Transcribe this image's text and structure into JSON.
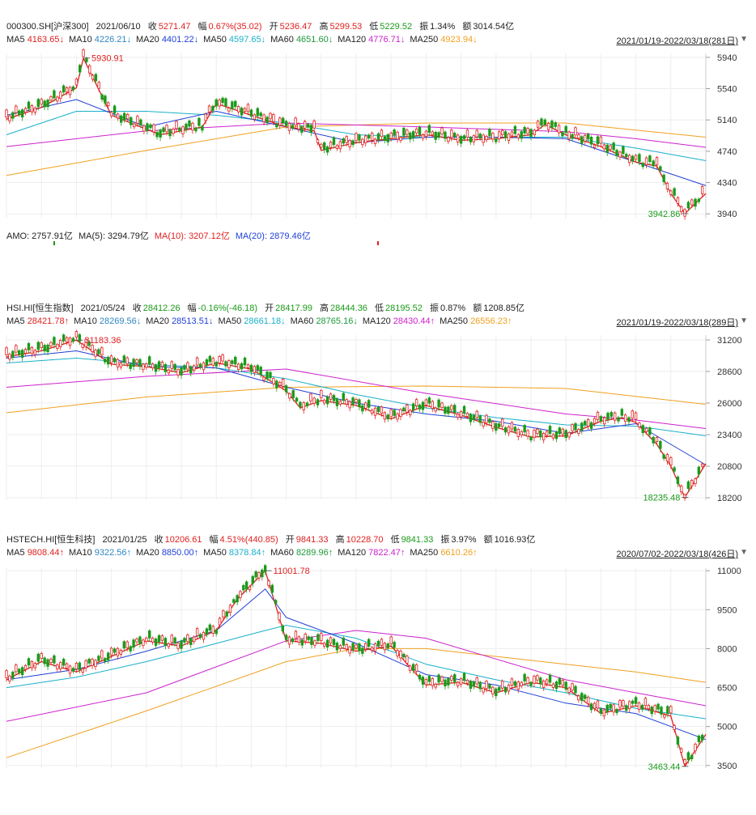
{
  "colors": {
    "up": "#e02020",
    "down": "#1a9a1a",
    "ma5": "#e02020",
    "ma10": "#2e86c1",
    "ma20": "#1f3fd6",
    "ma50": "#1ab0c9",
    "ma60": "#1e9a3a",
    "ma120": "#cc22cc",
    "ma250": "#f0a020",
    "label": "#333333"
  },
  "panels": [
    {
      "id": "csi300",
      "header": {
        "code": "000300.SH[沪深300]",
        "date": "2021/06/10",
        "close_label": "收",
        "close": "5271.47",
        "change_label": "幅",
        "change": "0.67%(35.02)",
        "open_label": "开",
        "open": "5236.47",
        "high_label": "高",
        "high": "5299.53",
        "low_label": "低",
        "low": "5229.52",
        "amp_label": "振",
        "amp": "1.34%",
        "amt_label": "额",
        "amt": "3014.54亿"
      },
      "ma_labels": [
        {
          "name": "MA5",
          "value": "4163.65↓"
        },
        {
          "name": "MA10",
          "value": "4226.21↓"
        },
        {
          "name": "MA20",
          "value": "4401.22↓"
        },
        {
          "name": "MA50",
          "value": "4597.65↓"
        },
        {
          "name": "MA60",
          "value": "4651.60↓"
        },
        {
          "name": "MA120",
          "value": "4776.71↓"
        },
        {
          "name": "MA250",
          "value": "4923.94↓"
        }
      ],
      "range": "2021/01/19-2022/03/18(281日)",
      "amo": {
        "amo": "AMO: 2757.91亿",
        "ma5": "MA(5): 3294.79亿",
        "ma10": "MA(10): 3207.12亿",
        "ma20": "MA(20): 2879.46亿"
      }
    },
    {
      "id": "hsi",
      "header": {
        "code": "HSI.HI[恒生指数]",
        "date": "2021/05/24",
        "close_label": "收",
        "close": "28412.26",
        "change_label": "幅",
        "change": "-0.16%(-46.18)",
        "open_label": "开",
        "open": "28417.99",
        "high_label": "高",
        "high": "28444.36",
        "low_label": "低",
        "low": "28195.52",
        "amp_label": "振",
        "amp": "0.87%",
        "amt_label": "额",
        "amt": "1208.85亿"
      },
      "ma_labels": [
        {
          "name": "MA5",
          "value": "28421.78↑"
        },
        {
          "name": "MA10",
          "value": "28269.56↓"
        },
        {
          "name": "MA20",
          "value": "28513.51↓"
        },
        {
          "name": "MA50",
          "value": "28661.18↓"
        },
        {
          "name": "MA60",
          "value": "28765.16↓"
        },
        {
          "name": "MA120",
          "value": "28430.44↑"
        },
        {
          "name": "MA250",
          "value": "26556.23↑"
        }
      ],
      "range": "2021/01/19-2022/03/18(289日)"
    },
    {
      "id": "hstech",
      "header": {
        "code": "HSTECH.HI[恒生科技]",
        "date": "2021/01/25",
        "close_label": "收",
        "close": "10206.61",
        "change_label": "幅",
        "change": "4.51%(440.85)",
        "open_label": "开",
        "open": "9841.33",
        "high_label": "高",
        "high": "10228.70",
        "low_label": "低",
        "low": "9841.33",
        "amp_label": "振",
        "amp": "3.97%",
        "amt_label": "额",
        "amt": "1016.93亿"
      },
      "ma_labels": [
        {
          "name": "MA5",
          "value": "9808.44↑"
        },
        {
          "name": "MA10",
          "value": "9322.56↑"
        },
        {
          "name": "MA20",
          "value": "8850.00↑"
        },
        {
          "name": "MA50",
          "value": "8378.84↑"
        },
        {
          "name": "MA60",
          "value": "8289.96↑"
        },
        {
          "name": "MA120",
          "value": "7822.47↑"
        },
        {
          "name": "MA250",
          "value": "6610.26↑"
        }
      ],
      "range": "2020/07/02-2022/03/18(426日)"
    }
  ],
  "chart_data": [
    {
      "type": "line",
      "y_ticks": [
        5940,
        5540,
        5140,
        4740,
        4340,
        3940
      ],
      "ylim": [
        3880,
        5990
      ],
      "annotations": [
        {
          "label": "5930.91",
          "x": 0.11,
          "y": 5930.91
        },
        {
          "label": "3942.86",
          "x": 0.975,
          "y": 3942.86
        }
      ],
      "series": [
        {
          "key": "close",
          "x": [
            0,
            0.05,
            0.1,
            0.11,
            0.15,
            0.22,
            0.28,
            0.3,
            0.35,
            0.4,
            0.44,
            0.45,
            0.5,
            0.55,
            0.6,
            0.65,
            0.7,
            0.75,
            0.77,
            0.8,
            0.85,
            0.9,
            0.93,
            0.95,
            0.97,
            1.0
          ],
          "values": [
            5150,
            5300,
            5550,
            5930,
            5200,
            4950,
            5050,
            5350,
            5200,
            5050,
            5000,
            4750,
            4850,
            4900,
            4950,
            4880,
            4900,
            4950,
            5080,
            4950,
            4800,
            4600,
            4550,
            4200,
            3943,
            4200
          ]
        },
        {
          "key": "ma20",
          "x": [
            0,
            0.1,
            0.2,
            0.3,
            0.4,
            0.5,
            0.6,
            0.7,
            0.8,
            0.9,
            1.0
          ],
          "values": [
            5200,
            5400,
            5050,
            5250,
            5050,
            4850,
            4920,
            4920,
            4900,
            4600,
            4300
          ]
        },
        {
          "key": "ma60",
          "x": [
            0,
            0.1,
            0.2,
            0.3,
            0.4,
            0.5,
            0.6,
            0.7,
            0.8,
            0.9,
            1.0
          ],
          "values": [
            4950,
            5250,
            5250,
            5200,
            5100,
            4950,
            4920,
            4920,
            4920,
            4780,
            4620
          ]
        },
        {
          "key": "ma120",
          "x": [
            0,
            0.2,
            0.4,
            0.6,
            0.8,
            0.9,
            1.0
          ],
          "values": [
            4800,
            5000,
            5100,
            5050,
            4990,
            4900,
            4790
          ]
        },
        {
          "key": "ma250",
          "x": [
            0,
            0.2,
            0.4,
            0.6,
            0.8,
            1.0
          ],
          "values": [
            4430,
            4750,
            5050,
            5100,
            5100,
            4920
          ]
        }
      ]
    },
    {
      "type": "line",
      "y_ticks": [
        31200,
        28600,
        26000,
        23400,
        20800,
        18200
      ],
      "ylim": [
        18000,
        31600
      ],
      "annotations": [
        {
          "label": "31183.36",
          "x": 0.1,
          "y": 31183.36
        },
        {
          "label": "18235.48",
          "x": 0.975,
          "y": 18235.48
        }
      ],
      "series": [
        {
          "key": "close",
          "x": [
            0,
            0.05,
            0.1,
            0.15,
            0.2,
            0.25,
            0.3,
            0.35,
            0.4,
            0.42,
            0.45,
            0.5,
            0.55,
            0.6,
            0.65,
            0.7,
            0.75,
            0.8,
            0.85,
            0.88,
            0.9,
            0.93,
            0.95,
            0.97,
            1.0
          ],
          "values": [
            29800,
            30300,
            31183,
            29200,
            29000,
            28500,
            29300,
            28800,
            27000,
            25600,
            26200,
            25800,
            24700,
            25800,
            25000,
            24000,
            23200,
            23300,
            24500,
            24800,
            24400,
            22600,
            20800,
            18235,
            21000
          ]
        },
        {
          "key": "ma20",
          "x": [
            0,
            0.1,
            0.2,
            0.3,
            0.4,
            0.5,
            0.6,
            0.7,
            0.8,
            0.9,
            1.0
          ],
          "values": [
            29700,
            30300,
            29000,
            28900,
            27300,
            26000,
            25100,
            24500,
            23500,
            24300,
            20900
          ]
        },
        {
          "key": "ma60",
          "x": [
            0,
            0.1,
            0.2,
            0.3,
            0.4,
            0.5,
            0.6,
            0.7,
            0.8,
            0.9,
            1.0
          ],
          "values": [
            29300,
            29700,
            29200,
            28900,
            28000,
            26700,
            25600,
            24800,
            24200,
            24100,
            23300
          ]
        },
        {
          "key": "ma120",
          "x": [
            0,
            0.2,
            0.4,
            0.6,
            0.8,
            0.9,
            1.0
          ],
          "values": [
            27300,
            28200,
            28800,
            26800,
            25100,
            24600,
            23900
          ]
        },
        {
          "key": "ma250",
          "x": [
            0,
            0.2,
            0.4,
            0.6,
            0.8,
            1.0
          ],
          "values": [
            25200,
            26500,
            27300,
            27400,
            27200,
            25900
          ]
        }
      ]
    },
    {
      "type": "line",
      "y_ticks": [
        11000,
        9500,
        8000,
        6500,
        5000,
        3500
      ],
      "ylim": [
        3400,
        11100
      ],
      "annotations": [
        {
          "label": "11001.78",
          "x": 0.37,
          "y": 11001.78
        },
        {
          "label": "3463.44",
          "x": 0.975,
          "y": 3463.44
        }
      ],
      "series": [
        {
          "key": "close",
          "x": [
            0,
            0.05,
            0.1,
            0.15,
            0.2,
            0.25,
            0.3,
            0.33,
            0.37,
            0.4,
            0.45,
            0.5,
            0.55,
            0.6,
            0.65,
            0.7,
            0.75,
            0.8,
            0.85,
            0.9,
            0.95,
            0.97,
            1.0
          ],
          "values": [
            6800,
            7500,
            7100,
            7700,
            8300,
            8100,
            8700,
            9900,
            11000,
            8300,
            8200,
            7900,
            8100,
            6600,
            6700,
            6300,
            6700,
            6500,
            5500,
            5800,
            5400,
            3463,
            4700
          ]
        },
        {
          "key": "ma20",
          "x": [
            0,
            0.1,
            0.2,
            0.3,
            0.37,
            0.4,
            0.5,
            0.6,
            0.7,
            0.8,
            0.9,
            1.0
          ],
          "values": [
            6800,
            7200,
            7900,
            8700,
            10300,
            9200,
            8200,
            7000,
            6600,
            5900,
            5500,
            4500
          ]
        },
        {
          "key": "ma60",
          "x": [
            0,
            0.1,
            0.2,
            0.3,
            0.37,
            0.4,
            0.5,
            0.6,
            0.7,
            0.8,
            0.9,
            1.0
          ],
          "values": [
            6500,
            6900,
            7500,
            8200,
            8700,
            8900,
            8400,
            7400,
            6800,
            6300,
            5700,
            5300
          ]
        },
        {
          "key": "ma120",
          "x": [
            0,
            0.2,
            0.4,
            0.5,
            0.6,
            0.7,
            0.8,
            0.9,
            1.0
          ],
          "values": [
            5200,
            6300,
            8300,
            8700,
            8400,
            7600,
            6800,
            6300,
            5800
          ]
        },
        {
          "key": "ma250",
          "x": [
            0,
            0.2,
            0.4,
            0.5,
            0.6,
            0.7,
            0.8,
            0.9,
            1.0
          ],
          "values": [
            3800,
            5600,
            7500,
            8000,
            8000,
            7700,
            7400,
            7100,
            6700
          ]
        }
      ]
    }
  ]
}
